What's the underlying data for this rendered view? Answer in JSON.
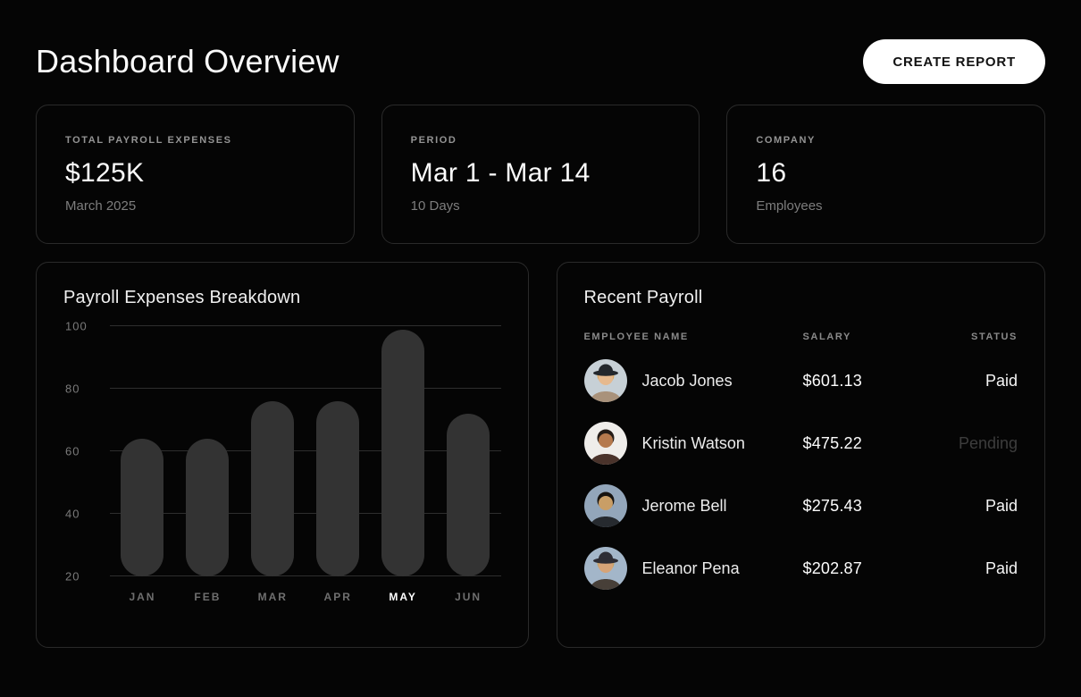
{
  "page": {
    "title": "Dashboard Overview"
  },
  "header": {
    "create_report_label": "CREATE REPORT"
  },
  "stats": [
    {
      "label": "TOTAL PAYROLL EXPENSES",
      "value": "$125K",
      "sub": "March 2025"
    },
    {
      "label": "PERIOD",
      "value": "Mar 1 - Mar 14",
      "sub": "10 Days"
    },
    {
      "label": "COMPANY",
      "value": "16",
      "sub": "Employees"
    }
  ],
  "chart_data": {
    "type": "bar",
    "title": "Payroll Expenses Breakdown",
    "categories": [
      "JAN",
      "FEB",
      "MAR",
      "APR",
      "MAY",
      "JUN"
    ],
    "values": [
      64,
      64,
      76,
      76,
      99,
      72
    ],
    "baseline": 20,
    "ylim": [
      20,
      100
    ],
    "y_ticks": [
      100,
      80,
      60,
      40,
      20
    ],
    "grid": true,
    "legend": false,
    "highlighted_category": "MAY",
    "bar_color": "#333333",
    "grid_color": "#2e2e2e",
    "xlabel": "",
    "ylabel": ""
  },
  "payroll": {
    "title": "Recent Payroll",
    "columns": [
      "EMPLOYEE NAME",
      "SALARY",
      "STATUS"
    ],
    "rows": [
      {
        "name": "Jacob Jones",
        "salary": "$601.13",
        "status": "Paid",
        "avatar": {
          "bg": "#c7d0d6",
          "skin": "#e6b98e",
          "hair": "#d8a763",
          "hat": "#23272c",
          "torso": "#a9927b"
        }
      },
      {
        "name": "Kristin Watson",
        "salary": "$475.22",
        "status": "Pending",
        "avatar": {
          "bg": "#efedea",
          "skin": "#b5794d",
          "hair": "#241c17",
          "hat": null,
          "torso": "#4a332b"
        }
      },
      {
        "name": "Jerome Bell",
        "salary": "$275.43",
        "status": "Paid",
        "avatar": {
          "bg": "#93a6ba",
          "skin": "#c99e66",
          "hair": "#17130f",
          "hat": null,
          "torso": "#262a2f"
        }
      },
      {
        "name": "Eleanor Pena",
        "salary": "$202.87",
        "status": "Paid",
        "avatar": {
          "bg": "#a3b6c9",
          "skin": "#d6a377",
          "hair": "#c2a268",
          "hat": "#2e2d35",
          "torso": "#473f38"
        }
      }
    ]
  },
  "colors": {
    "button_bg": "#ffffff",
    "button_text": "#121212",
    "status_paid": "#f5f5f5",
    "status_pending": "#3d3d3d",
    "card_border": "#2a2a2a",
    "background": "#050505"
  }
}
